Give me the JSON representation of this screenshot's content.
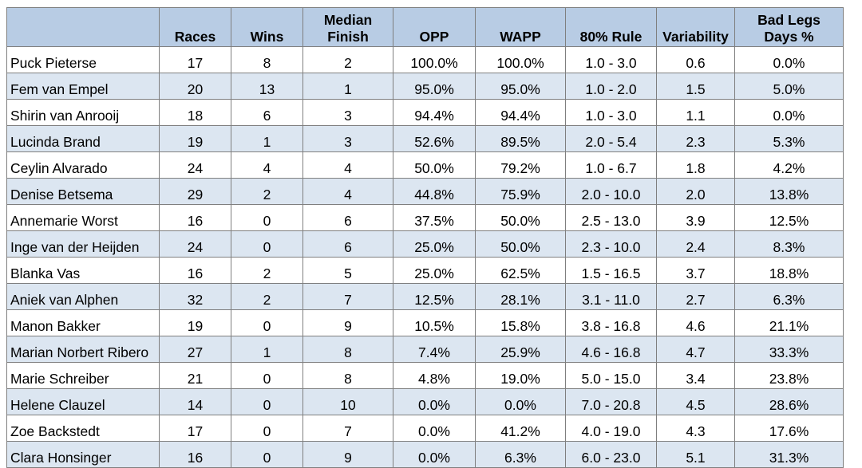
{
  "headers": [
    "",
    "Races",
    "Wins",
    "Median Finish",
    "OPP",
    "WAPP",
    "80% Rule",
    "Variability",
    "Bad Legs Days %"
  ],
  "header_lines": [
    [
      "",
      ""
    ],
    [
      "",
      "Races"
    ],
    [
      "",
      "Wins"
    ],
    [
      "Median",
      "Finish"
    ],
    [
      "",
      "OPP"
    ],
    [
      "",
      "WAPP"
    ],
    [
      "",
      "80% Rule"
    ],
    [
      "",
      "Variability"
    ],
    [
      "Bad Legs",
      "Days %"
    ]
  ],
  "rows": [
    [
      "Puck Pieterse",
      "17",
      "8",
      "2",
      "100.0%",
      "100.0%",
      "1.0 - 3.0",
      "0.6",
      "0.0%"
    ],
    [
      "Fem van Empel",
      "20",
      "13",
      "1",
      "95.0%",
      "95.0%",
      "1.0 - 2.0",
      "1.5",
      "5.0%"
    ],
    [
      "Shirin van Anrooij",
      "18",
      "6",
      "3",
      "94.4%",
      "94.4%",
      "1.0 - 3.0",
      "1.1",
      "0.0%"
    ],
    [
      "Lucinda Brand",
      "19",
      "1",
      "3",
      "52.6%",
      "89.5%",
      "2.0 - 5.4",
      "2.3",
      "5.3%"
    ],
    [
      "Ceylin Alvarado",
      "24",
      "4",
      "4",
      "50.0%",
      "79.2%",
      "1.0 - 6.7",
      "1.8",
      "4.2%"
    ],
    [
      "Denise Betsema",
      "29",
      "2",
      "4",
      "44.8%",
      "75.9%",
      "2.0 - 10.0",
      "2.0",
      "13.8%"
    ],
    [
      "Annemarie Worst",
      "16",
      "0",
      "6",
      "37.5%",
      "50.0%",
      "2.5 - 13.0",
      "3.9",
      "12.5%"
    ],
    [
      "Inge van der Heijden",
      "24",
      "0",
      "6",
      "25.0%",
      "50.0%",
      "2.3 - 10.0",
      "2.4",
      "8.3%"
    ],
    [
      "Blanka Vas",
      "16",
      "2",
      "5",
      "25.0%",
      "62.5%",
      "1.5 - 16.5",
      "3.7",
      "18.8%"
    ],
    [
      "Aniek van Alphen",
      "32",
      "2",
      "7",
      "12.5%",
      "28.1%",
      "3.1 - 11.0",
      "2.7",
      "6.3%"
    ],
    [
      "Manon Bakker",
      "19",
      "0",
      "9",
      "10.5%",
      "15.8%",
      "3.8 - 16.8",
      "4.6",
      "21.1%"
    ],
    [
      "Marian Norbert Ribero",
      "27",
      "1",
      "8",
      "7.4%",
      "25.9%",
      "4.6 - 16.8",
      "4.7",
      "33.3%"
    ],
    [
      "Marie Schreiber",
      "21",
      "0",
      "8",
      "4.8%",
      "19.0%",
      "5.0 - 15.0",
      "3.4",
      "23.8%"
    ],
    [
      "Helene Clauzel",
      "14",
      "0",
      "10",
      "0.0%",
      "0.0%",
      "7.0 - 20.8",
      "4.5",
      "28.6%"
    ],
    [
      "Zoe Backstedt",
      "17",
      "0",
      "7",
      "0.0%",
      "41.2%",
      "4.0 - 19.0",
      "4.3",
      "17.6%"
    ],
    [
      "Clara Honsinger",
      "16",
      "0",
      "9",
      "0.0%",
      "6.3%",
      "6.0 - 23.0",
      "5.1",
      "31.3%"
    ]
  ],
  "colors": {
    "header_bg": "#b8cce4",
    "band_bg": "#dce6f1",
    "row_bg": "#ffffff",
    "grid": "#7f7f7f"
  }
}
